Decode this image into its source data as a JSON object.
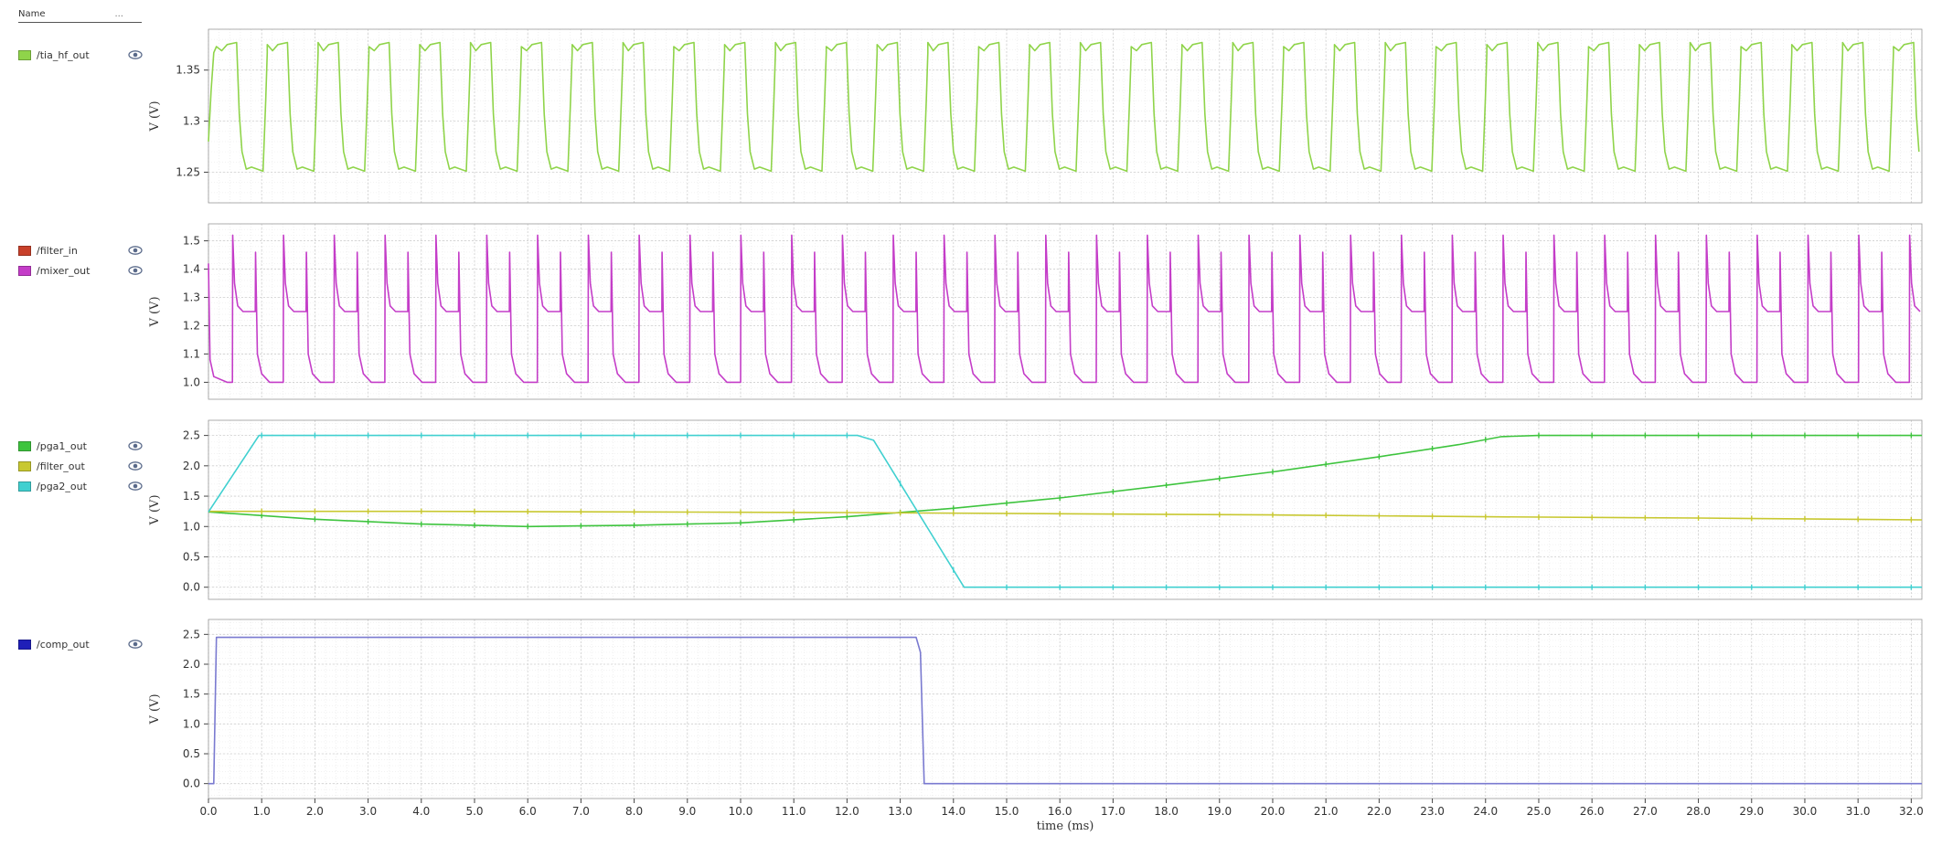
{
  "sidebar": {
    "header": {
      "name": "Name",
      "more": "..."
    }
  },
  "chart_data": {
    "type": "line",
    "x": {
      "label": "time (ms)",
      "range": [
        0.0,
        32.2
      ],
      "ticks": [
        "0.0",
        "1.0",
        "2.0",
        "3.0",
        "4.0",
        "5.0",
        "6.0",
        "7.0",
        "8.0",
        "9.0",
        "10.0",
        "11.0",
        "12.0",
        "13.0",
        "14.0",
        "15.0",
        "16.0",
        "17.0",
        "18.0",
        "19.0",
        "20.0",
        "21.0",
        "22.0",
        "23.0",
        "24.0",
        "25.0",
        "26.0",
        "27.0",
        "28.0",
        "29.0",
        "30.0",
        "31.0",
        "32.0"
      ]
    },
    "panels": [
      {
        "ylabel": "V (V)",
        "ylim": [
          1.22,
          1.39
        ],
        "yticks": [
          "1.25",
          "1.3",
          "1.35"
        ],
        "series": [
          {
            "name": "/tia_hf_out",
            "color": "#8fd44a",
            "shape": "square-wave",
            "period_ms": 0.955,
            "high": 1.377,
            "low": 1.25,
            "duty": 0.45
          }
        ]
      },
      {
        "ylabel": "V (V)",
        "ylim": [
          0.94,
          1.56
        ],
        "yticks": [
          "1.0",
          "1.1",
          "1.2",
          "1.3",
          "1.4",
          "1.5"
        ],
        "series": [
          {
            "name": "/filter_in",
            "color": "#c8402a",
            "shape": "hidden"
          },
          {
            "name": "/mixer_out",
            "color": "#c43dc8",
            "shape": "spiky-square-wave",
            "period_ms": 0.955,
            "peak": 1.52,
            "mid": 1.25,
            "low": 1.0
          }
        ]
      },
      {
        "ylabel": "V (V)",
        "ylim": [
          -0.2,
          2.75
        ],
        "yticks": [
          "0.0",
          "0.5",
          "1.0",
          "1.5",
          "2.0",
          "2.5"
        ],
        "series": [
          {
            "name": "/pga1_out",
            "color": "#3ec43e",
            "points": [
              [
                0.0,
                1.24
              ],
              [
                2.0,
                1.12
              ],
              [
                4.0,
                1.04
              ],
              [
                6.0,
                1.0
              ],
              [
                8.0,
                1.02
              ],
              [
                10.0,
                1.06
              ],
              [
                12.0,
                1.16
              ],
              [
                14.0,
                1.3
              ],
              [
                16.0,
                1.47
              ],
              [
                18.0,
                1.68
              ],
              [
                20.0,
                1.9
              ],
              [
                22.0,
                2.15
              ],
              [
                23.5,
                2.35
              ],
              [
                24.3,
                2.48
              ],
              [
                25.0,
                2.5
              ],
              [
                32.2,
                2.5
              ]
            ]
          },
          {
            "name": "/filter_out",
            "color": "#c8c830",
            "points": [
              [
                0.0,
                1.25
              ],
              [
                4.0,
                1.25
              ],
              [
                8.0,
                1.24
              ],
              [
                12.0,
                1.23
              ],
              [
                16.0,
                1.21
              ],
              [
                20.0,
                1.19
              ],
              [
                24.0,
                1.16
              ],
              [
                28.0,
                1.14
              ],
              [
                32.2,
                1.11
              ]
            ]
          },
          {
            "name": "/pga2_out",
            "color": "#40d0d0",
            "points": [
              [
                0.0,
                1.24
              ],
              [
                0.95,
                2.5
              ],
              [
                12.2,
                2.5
              ],
              [
                12.5,
                2.42
              ],
              [
                14.2,
                0.0
              ],
              [
                32.2,
                0.0
              ]
            ]
          }
        ]
      },
      {
        "ylabel": "V (V)",
        "ylim": [
          -0.25,
          2.75
        ],
        "yticks": [
          "0.0",
          "0.5",
          "1.0",
          "1.5",
          "2.0",
          "2.5"
        ],
        "series": [
          {
            "name": "/comp_out",
            "color": "#1f1fb8",
            "line_color": "#7a7ad0",
            "points": [
              [
                0.0,
                0.0
              ],
              [
                0.1,
                0.0
              ],
              [
                0.15,
                2.45
              ],
              [
                13.3,
                2.45
              ],
              [
                13.38,
                2.2
              ],
              [
                13.45,
                0.0
              ],
              [
                32.2,
                0.0
              ]
            ]
          }
        ]
      }
    ]
  }
}
